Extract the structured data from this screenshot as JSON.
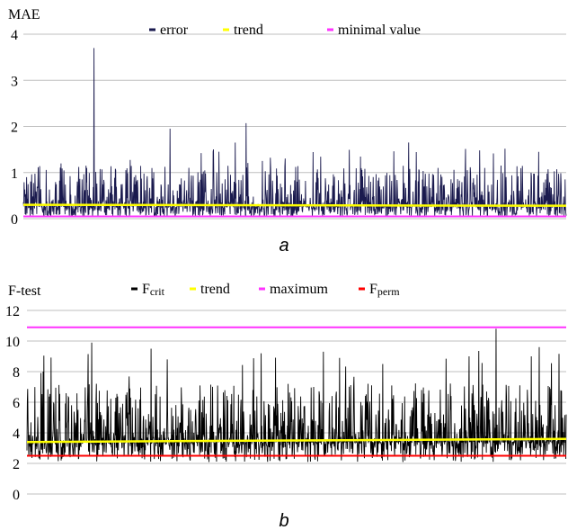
{
  "colors": {
    "error": "#1a1a4e",
    "fcrit": "#000000",
    "trend": "#ffff00",
    "minimal": "#ff33ff",
    "maximum": "#ff33ff",
    "fperm": "#ff0000",
    "grid": "#bfbfbf"
  },
  "chart_data": [
    {
      "type": "line",
      "panel_label": "a",
      "ylabel": "MAE",
      "ylim": [
        0,
        4
      ],
      "yticks": [
        "0",
        "1",
        "2",
        "3",
        "4"
      ],
      "grid": true,
      "legend_position": "top",
      "legend": [
        {
          "label": "error",
          "color": "#1a1a4e"
        },
        {
          "label": "trend",
          "color": "#ffff00"
        },
        {
          "label": "minimal value",
          "color": "#ff33ff"
        }
      ],
      "series": [
        {
          "name": "error",
          "kind": "noise",
          "baseline": 0.27,
          "spread": 0.55,
          "floor": 0.05,
          "points": 1500,
          "peaks": [
            [
              0.13,
              3.7
            ],
            [
              0.27,
              1.95
            ],
            [
              0.35,
              1.5
            ],
            [
              0.36,
              1.45
            ],
            [
              0.39,
              1.65
            ],
            [
              0.41,
              2.07
            ],
            [
              0.44,
              1.25
            ],
            [
              0.71,
              1.65
            ],
            [
              0.88,
              1.15
            ],
            [
              0.85,
              1.1
            ]
          ]
        },
        {
          "name": "trend",
          "kind": "line",
          "values": [
            0.3,
            0.28
          ]
        },
        {
          "name": "minimal value",
          "kind": "line",
          "values": [
            0.05,
            0.05
          ]
        }
      ]
    },
    {
      "type": "line",
      "panel_label": "b",
      "ylabel": "F-test",
      "ylim": [
        0,
        12
      ],
      "yticks": [
        "0",
        "2",
        "4",
        "6",
        "8",
        "10",
        "12"
      ],
      "grid": true,
      "legend_position": "top",
      "legend": [
        {
          "label": "F",
          "sub": "crit",
          "color": "#000000"
        },
        {
          "label": "trend",
          "sub": "",
          "color": "#ffff00"
        },
        {
          "label": "maximum",
          "sub": "",
          "color": "#ff33ff"
        },
        {
          "label": "F",
          "sub": "perm",
          "color": "#ff0000"
        }
      ],
      "series": [
        {
          "name": "Fcrit",
          "kind": "noise",
          "baseline": 3.4,
          "spread": 2.4,
          "floor": 0.6,
          "points": 1500,
          "peaks": [
            [
              0.12,
              9.9
            ],
            [
              0.23,
              9.5
            ],
            [
              0.26,
              8.8
            ],
            [
              0.55,
              9.3
            ],
            [
              0.58,
              8.9
            ],
            [
              0.66,
              8.5
            ],
            [
              0.82,
              9.0
            ],
            [
              0.87,
              10.8
            ],
            [
              0.95,
              9.6
            ],
            [
              0.03,
              8.0
            ]
          ]
        },
        {
          "name": "trend",
          "kind": "line",
          "values": [
            3.4,
            3.6
          ]
        },
        {
          "name": "maximum",
          "kind": "line",
          "values": [
            10.9,
            10.9
          ]
        },
        {
          "name": "Fperm",
          "kind": "line",
          "values": [
            2.5,
            2.5
          ]
        }
      ]
    }
  ]
}
